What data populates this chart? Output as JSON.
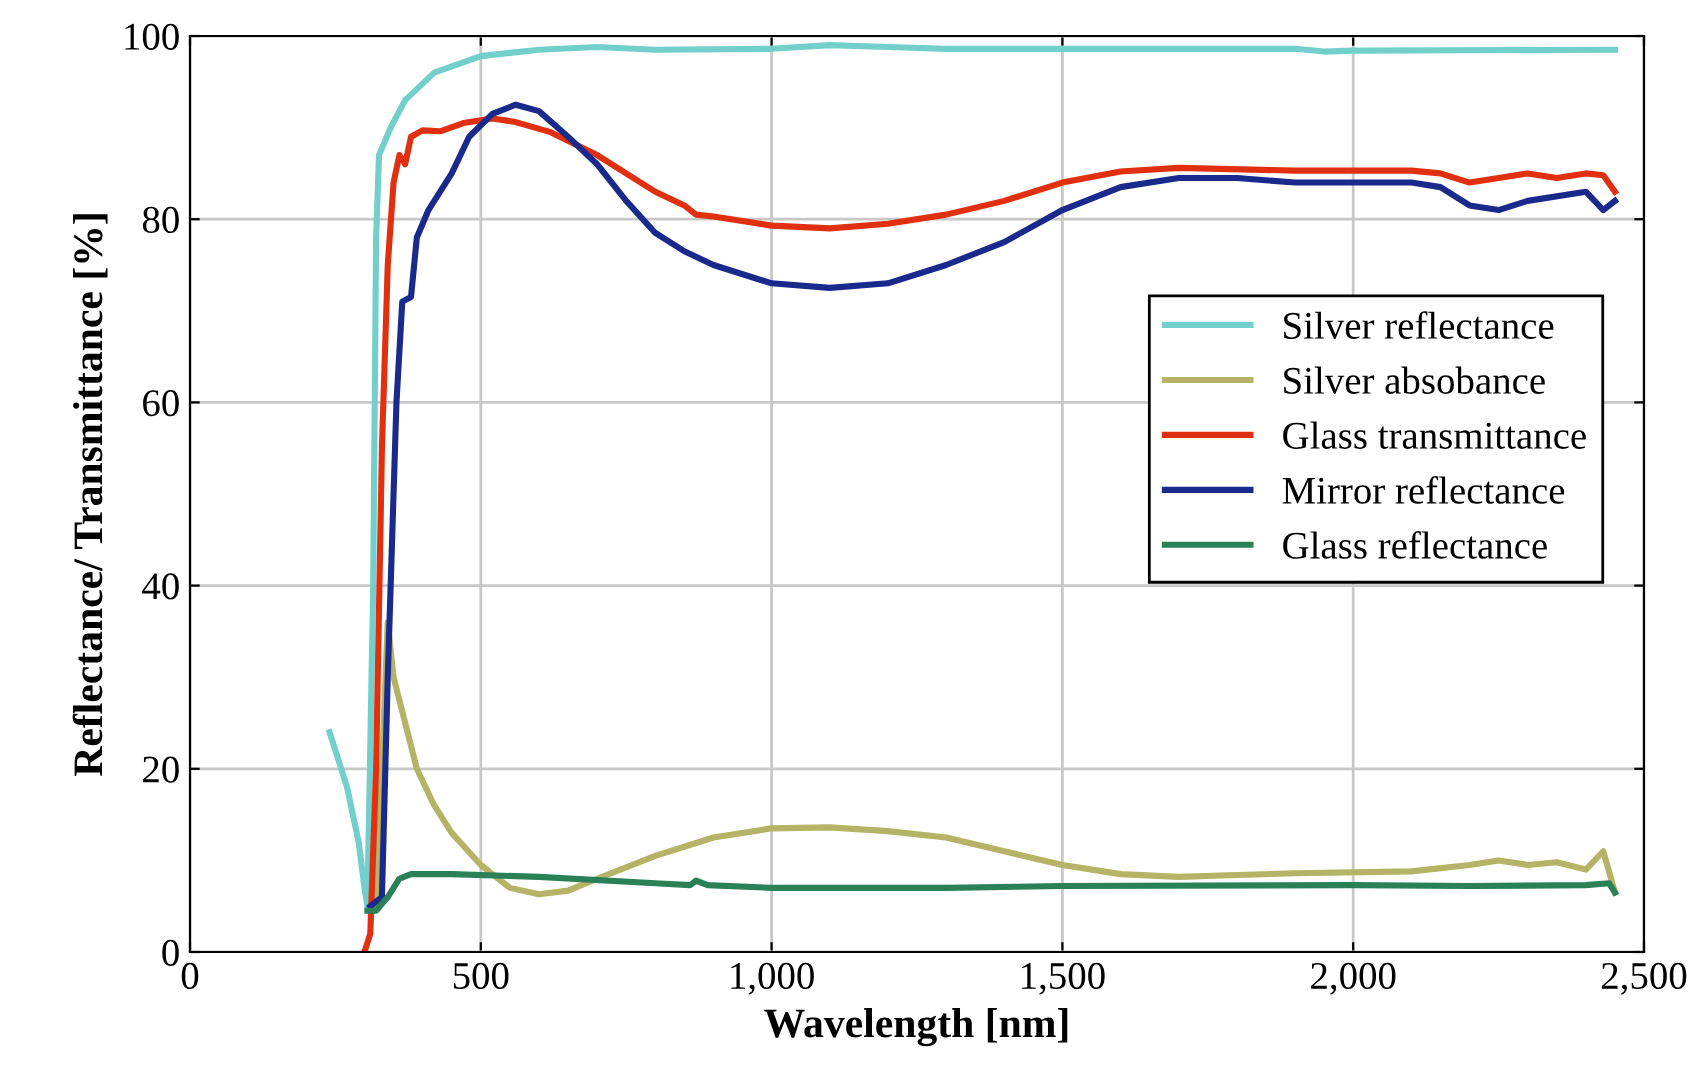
{
  "chart_data": {
    "type": "line",
    "xlabel": "Wavelength [nm]",
    "ylabel": "Reflectance/ Transmittance [%]",
    "xlim": [
      0,
      2500
    ],
    "ylim": [
      0,
      100
    ],
    "xticks": [
      0,
      {
        "value": 500,
        "label": "500"
      },
      {
        "value": 1000,
        "label": "1,000"
      },
      {
        "value": 1500,
        "label": "1,500"
      },
      {
        "value": 2000,
        "label": "2,000"
      },
      {
        "value": 2500,
        "label": "2,500"
      }
    ],
    "yticks": [
      0,
      20,
      40,
      60,
      80,
      100
    ],
    "grid": true,
    "legend": "right",
    "marker": "none",
    "line_style": "solid",
    "series": [
      {
        "name": "Silver reflectance",
        "color": "#72cfcb",
        "x": [
          240,
          270,
          290,
          300,
          305,
          315,
          320,
          325,
          345,
          370,
          420,
          500,
          600,
          700,
          800,
          1000,
          1100,
          1200,
          1300,
          1600,
          1900,
          1950,
          2000,
          2450
        ],
        "values": [
          24,
          18,
          12,
          7,
          5,
          40,
          78,
          87,
          90,
          93,
          96,
          97.8,
          98.5,
          98.8,
          98.5,
          98.6,
          99,
          98.8,
          98.6,
          98.6,
          98.6,
          98.3,
          98.4,
          98.5
        ]
      },
      {
        "name": "Silver absobance",
        "color": "#b5b365",
        "x": [
          320,
          330,
          340,
          350,
          370,
          390,
          420,
          450,
          500,
          550,
          600,
          650,
          700,
          800,
          900,
          1000,
          1100,
          1200,
          1300,
          1400,
          1500,
          1600,
          1700,
          1800,
          1900,
          2100,
          2200,
          2250,
          2300,
          2350,
          2400,
          2430,
          2450
        ],
        "values": [
          5,
          20,
          36,
          30,
          25,
          20,
          16,
          13,
          9.5,
          7,
          6.3,
          6.7,
          8,
          10.5,
          12.5,
          13.5,
          13.6,
          13.2,
          12.5,
          11,
          9.5,
          8.5,
          8.2,
          8.4,
          8.6,
          8.8,
          9.5,
          10,
          9.5,
          9.8,
          9,
          11,
          6.5
        ]
      },
      {
        "name": "Glass transmittance",
        "color": "#e03010",
        "x": [
          300,
          310,
          320,
          330,
          340,
          350,
          360,
          370,
          380,
          400,
          430,
          470,
          520,
          560,
          620,
          700,
          800,
          850,
          870,
          900,
          1000,
          1100,
          1200,
          1300,
          1400,
          1500,
          1600,
          1700,
          1900,
          2100,
          2150,
          2200,
          2250,
          2300,
          2350,
          2400,
          2430,
          2450
        ],
        "values": [
          0,
          2,
          20,
          55,
          75,
          84,
          87,
          86,
          89,
          89.7,
          89.6,
          90.5,
          91,
          90.6,
          89.5,
          87,
          83,
          81.5,
          80.5,
          80.3,
          79.3,
          79,
          79.5,
          80.5,
          82,
          84,
          85.2,
          85.6,
          85.3,
          85.3,
          85,
          84,
          84.5,
          85,
          84.5,
          85,
          84.8,
          83
        ]
      },
      {
        "name": "Mirror reflectance",
        "color": "#1a2a8c",
        "x": [
          310,
          330,
          340,
          355,
          365,
          380,
          390,
          410,
          450,
          480,
          520,
          560,
          600,
          650,
          700,
          750,
          800,
          850,
          900,
          1000,
          1100,
          1200,
          1300,
          1400,
          1500,
          1600,
          1700,
          1800,
          1900,
          2000,
          2100,
          2150,
          2200,
          2250,
          2300,
          2400,
          2430,
          2450
        ],
        "values": [
          5,
          6,
          30,
          60,
          71,
          71.5,
          78,
          81,
          85,
          89,
          91.5,
          92.5,
          91.8,
          89,
          86,
          82,
          78.5,
          76.5,
          75,
          73,
          72.5,
          73,
          75,
          77.5,
          81,
          83.5,
          84.5,
          84.5,
          84,
          84,
          84,
          83.5,
          81.5,
          81,
          82,
          83,
          81,
          82
        ]
      },
      {
        "name": "Glass reflectance",
        "color": "#2a8057",
        "x": [
          305,
          320,
          340,
          360,
          380,
          450,
          600,
          800,
          860,
          870,
          890,
          1000,
          1300,
          1500,
          2000,
          2200,
          2400,
          2440,
          2450
        ],
        "values": [
          4.5,
          4.5,
          6,
          8,
          8.5,
          8.5,
          8.2,
          7.5,
          7.3,
          7.8,
          7.3,
          7,
          7,
          7.2,
          7.3,
          7.2,
          7.3,
          7.5,
          6.5
        ]
      }
    ]
  }
}
